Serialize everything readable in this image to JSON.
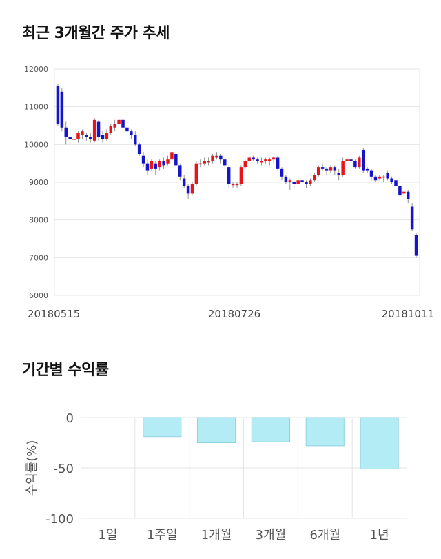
{
  "sections": {
    "price_title": "최근 3개월간 주가 추세",
    "returns_title": "기간별 수익률"
  },
  "colors": {
    "up": "#e8141b",
    "down": "#1414c8",
    "bar_fill": "#b3ecf5",
    "bar_stroke": "#8fd3e0",
    "grid": "#e4e4e4"
  },
  "chart_data": [
    {
      "type": "candlestick",
      "title": "",
      "ylim": [
        6000,
        12000
      ],
      "y_ticks": [
        "12000",
        "11000",
        "10000",
        "9000",
        "8000",
        "7000",
        "6000"
      ],
      "x_ticks": [
        "20180515",
        "20180726",
        "20181011"
      ],
      "candles": [
        [
          11550,
          10550,
          11600,
          10500
        ],
        [
          11400,
          10450,
          11500,
          10350
        ],
        [
          10450,
          10200,
          10600,
          10000
        ],
        [
          10200,
          10150,
          10400,
          10050
        ],
        [
          10150,
          10150,
          10250,
          10000
        ],
        [
          10150,
          10300,
          10350,
          10050
        ],
        [
          10250,
          10350,
          10400,
          10150
        ],
        [
          10250,
          10200,
          10300,
          10100
        ],
        [
          10200,
          10150,
          10300,
          10050
        ],
        [
          10100,
          10650,
          10700,
          10050
        ],
        [
          10600,
          10200,
          10650,
          10100
        ],
        [
          10250,
          10150,
          10350,
          10050
        ],
        [
          10150,
          10300,
          10400,
          10100
        ],
        [
          10300,
          10500,
          10550,
          10250
        ],
        [
          10450,
          10550,
          10650,
          10350
        ],
        [
          10550,
          10650,
          10800,
          10500
        ],
        [
          10650,
          10450,
          10700,
          10400
        ],
        [
          10450,
          10350,
          10550,
          10250
        ],
        [
          10350,
          10250,
          10400,
          10150
        ],
        [
          10250,
          10000,
          10350,
          9950
        ],
        [
          10000,
          9750,
          10050,
          9700
        ],
        [
          9700,
          9500,
          9800,
          9400
        ],
        [
          9500,
          9300,
          9600,
          9200
        ],
        [
          9350,
          9550,
          9600,
          9300
        ],
        [
          9500,
          9350,
          9550,
          9200
        ],
        [
          9400,
          9550,
          9600,
          9300
        ],
        [
          9550,
          9450,
          9650,
          9350
        ],
        [
          9500,
          9600,
          9700,
          9450
        ],
        [
          9600,
          9800,
          9850,
          9550
        ],
        [
          9750,
          9450,
          9800,
          9400
        ],
        [
          9450,
          9150,
          9500,
          9050
        ],
        [
          9100,
          8900,
          9200,
          8850
        ],
        [
          8900,
          8700,
          8950,
          8550
        ],
        [
          8700,
          8950,
          9000,
          8650
        ],
        [
          8950,
          9500,
          9550,
          8900
        ],
        [
          9500,
          9500,
          9600,
          9400
        ],
        [
          9500,
          9550,
          9650,
          9450
        ],
        [
          9550,
          9550,
          9650,
          9450
        ],
        [
          9550,
          9700,
          9750,
          9500
        ],
        [
          9650,
          9700,
          9800,
          9600
        ],
        [
          9700,
          9600,
          9750,
          9500
        ],
        [
          9600,
          9450,
          9650,
          9350
        ],
        [
          9400,
          8950,
          9450,
          8850
        ],
        [
          8950,
          8950,
          9000,
          8850
        ],
        [
          8950,
          8950,
          9000,
          8850
        ],
        [
          8950,
          9400,
          9450,
          8900
        ],
        [
          9400,
          9550,
          9600,
          9350
        ],
        [
          9550,
          9650,
          9700,
          9500
        ],
        [
          9650,
          9600,
          9700,
          9550
        ],
        [
          9600,
          9550,
          9650,
          9500
        ],
        [
          9550,
          9550,
          9650,
          9450
        ],
        [
          9550,
          9600,
          9650,
          9500
        ],
        [
          9550,
          9600,
          9650,
          9450
        ],
        [
          9600,
          9650,
          9700,
          9500
        ],
        [
          9650,
          9350,
          9700,
          9300
        ],
        [
          9350,
          9150,
          9400,
          9050
        ],
        [
          9150,
          9000,
          9200,
          8950
        ],
        [
          9000,
          9050,
          9100,
          8800
        ],
        [
          9000,
          8950,
          9050,
          8850
        ],
        [
          8950,
          9050,
          9100,
          8900
        ],
        [
          9050,
          9000,
          9100,
          8900
        ],
        [
          9000,
          8950,
          9050,
          8850
        ],
        [
          8950,
          9050,
          9100,
          8900
        ],
        [
          9050,
          9200,
          9250,
          9000
        ],
        [
          9200,
          9400,
          9450,
          9150
        ],
        [
          9400,
          9350,
          9500,
          9300
        ],
        [
          9350,
          9300,
          9400,
          9200
        ],
        [
          9300,
          9400,
          9450,
          9250
        ],
        [
          9400,
          9300,
          9450,
          9200
        ],
        [
          9250,
          9200,
          9350,
          9050
        ],
        [
          9200,
          9550,
          9650,
          9150
        ],
        [
          9550,
          9600,
          9700,
          9500
        ],
        [
          9600,
          9550,
          9650,
          9450
        ],
        [
          9550,
          9400,
          9600,
          9350
        ],
        [
          9400,
          9650,
          9700,
          9350
        ],
        [
          9850,
          9300,
          9900,
          9250
        ],
        [
          9350,
          9300,
          9400,
          9250
        ],
        [
          9300,
          9150,
          9350,
          9050
        ],
        [
          9150,
          9050,
          9200,
          9000
        ],
        [
          9100,
          9150,
          9200,
          9050
        ],
        [
          9150,
          9150,
          9200,
          9000
        ],
        [
          9250,
          9100,
          9300,
          9050
        ],
        [
          9100,
          9000,
          9150,
          8950
        ],
        [
          9050,
          8900,
          9100,
          8850
        ],
        [
          8900,
          8650,
          8950,
          8600
        ],
        [
          8700,
          8750,
          8800,
          8550
        ],
        [
          8750,
          8550,
          8800,
          8450
        ],
        [
          8350,
          7750,
          8450,
          7700
        ],
        [
          7600,
          7050,
          7650,
          7000
        ]
      ]
    },
    {
      "type": "bar",
      "title": "",
      "ylabel": "수익률(%)",
      "ylim": [
        -100,
        0
      ],
      "y_ticks": [
        "0",
        "-50",
        "-100"
      ],
      "categories": [
        "1일",
        "1주일",
        "1개월",
        "3개월",
        "6개월",
        "1년"
      ],
      "values": [
        0,
        -19,
        -25,
        -24,
        -28,
        -51
      ]
    }
  ]
}
